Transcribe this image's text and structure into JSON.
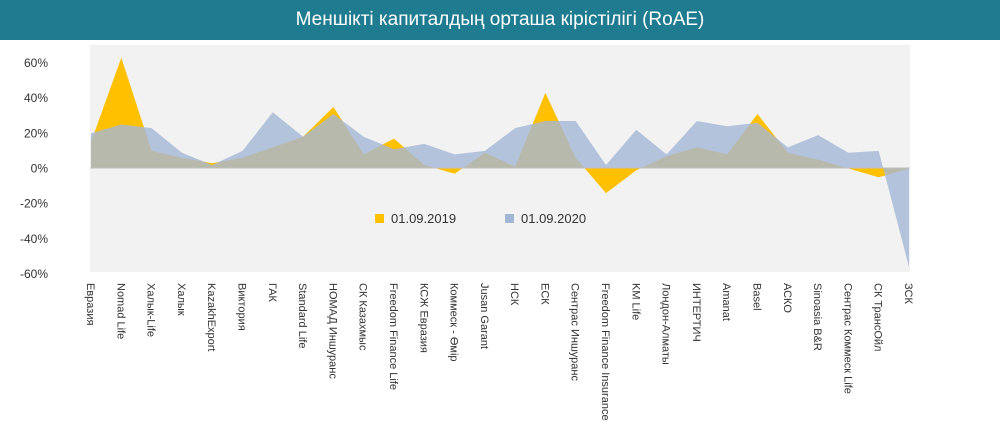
{
  "chart_data": {
    "type": "area",
    "title": "Меншікті капиталдың орташа кірістілігі (RoAE)",
    "categories": [
      "Евразия",
      "Nomad Life",
      "Халык-Life",
      "Халык",
      "KazakhExport",
      "Виктория",
      "ГАК",
      "Standard Life",
      "НОМАД Иншуранс",
      "СК Казахмыс",
      "Freedom Finance Life",
      "КСЖ Евразия",
      "Коммеск - Өмір",
      "Jusan Garant",
      "НСК",
      "ЕСК",
      "Сентрас Иншуранс",
      "Freedom Finance Insurance",
      "KM Life",
      "Лондон-Алматы",
      "ИНТЕРТИЧ",
      "Amanat",
      "Basel",
      "АСКО",
      "Sinoasia B&R",
      "Сентрас Коммеск Life",
      "СК ТрансОйл",
      "ЗСК"
    ],
    "series": [
      {
        "name": "01.09.2019",
        "color": "#ffc000",
        "values": [
          15,
          63,
          10,
          6,
          3,
          6,
          12,
          18,
          35,
          8,
          17,
          2,
          -3,
          9,
          1,
          43,
          6,
          -14,
          -1,
          7,
          12,
          8,
          31,
          9,
          5,
          0,
          -5,
          0
        ]
      },
      {
        "name": "01.09.2020",
        "color": "#a4b6d6",
        "values": [
          20,
          25,
          23,
          9,
          2,
          10,
          32,
          18,
          31,
          18,
          11,
          14,
          8,
          10,
          23,
          27,
          27,
          2,
          22,
          8,
          27,
          24,
          26,
          12,
          19,
          9,
          10,
          -56
        ]
      }
    ],
    "y_ticks": [
      "60%",
      "40%",
      "20%",
      "0%",
      "-20%",
      "-40%",
      "-60%"
    ],
    "ylim": [
      -60,
      60
    ],
    "legend": "inside-center-left"
  }
}
